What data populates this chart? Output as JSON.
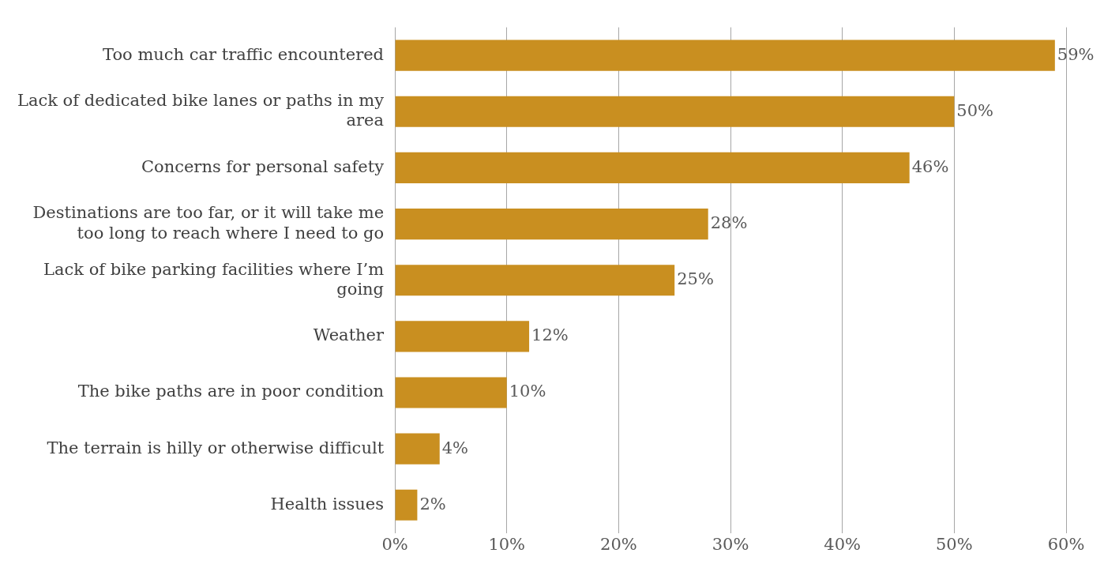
{
  "chart_data": {
    "type": "bar",
    "orientation": "horizontal",
    "categories": [
      "Too much car traffic encountered",
      "Lack of dedicated bike lanes or paths in my area",
      "Concerns for personal safety",
      "Destinations are too far, or it will take me too long to reach where I need to go",
      "Lack of bike parking facilities where I’m going",
      "Weather",
      "The bike paths are in poor condition",
      "The terrain is hilly or otherwise difficult",
      "Health issues"
    ],
    "values": [
      59,
      50,
      46,
      28,
      25,
      12,
      10,
      4,
      2
    ],
    "value_labels": [
      "59%",
      "50%",
      "46%",
      "28%",
      "25%",
      "12%",
      "10%",
      "4%",
      "2%"
    ],
    "color": "#c98f20",
    "xlim": [
      0,
      60
    ],
    "xticks": [
      {
        "value": 0,
        "label": "0%"
      },
      {
        "value": 10,
        "label": "10%"
      },
      {
        "value": 20,
        "label": "20%"
      },
      {
        "value": 30,
        "label": "30%"
      },
      {
        "value": 40,
        "label": "40%"
      },
      {
        "value": 50,
        "label": "50%"
      },
      {
        "value": 60,
        "label": "60%"
      }
    ],
    "grid": "x",
    "legend": false
  }
}
